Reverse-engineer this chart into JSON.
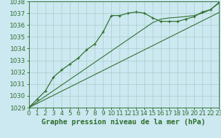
{
  "title": "Graphe pression niveau de la mer (hPa)",
  "background_color": "#cce8f0",
  "grid_color": "#a8ccc8",
  "line_color": "#2d6e2d",
  "x_values": [
    0,
    1,
    2,
    3,
    4,
    5,
    6,
    7,
    8,
    9,
    10,
    11,
    12,
    13,
    14,
    15,
    16,
    17,
    18,
    19,
    20,
    21,
    22,
    23
  ],
  "y_main": [
    1029.0,
    1029.7,
    1030.4,
    1031.6,
    1032.2,
    1032.7,
    1033.2,
    1033.9,
    1034.4,
    1035.4,
    1036.8,
    1036.8,
    1037.0,
    1037.1,
    1037.0,
    1036.6,
    1036.3,
    1036.3,
    1036.3,
    1036.5,
    1036.7,
    1037.1,
    1037.3,
    1037.9
  ],
  "y_trend1": [
    1029.0,
    1029.35,
    1029.7,
    1030.05,
    1030.4,
    1030.75,
    1031.1,
    1031.45,
    1031.8,
    1032.15,
    1032.5,
    1032.85,
    1033.2,
    1033.55,
    1033.9,
    1034.25,
    1034.6,
    1034.95,
    1035.3,
    1035.65,
    1036.0,
    1036.35,
    1036.7,
    1037.05
  ],
  "y_trend2": [
    1029.0,
    1029.48,
    1029.96,
    1030.44,
    1030.92,
    1031.4,
    1031.88,
    1032.36,
    1032.84,
    1033.32,
    1033.8,
    1034.28,
    1034.76,
    1035.24,
    1035.72,
    1036.2,
    1036.5,
    1036.6,
    1036.65,
    1036.72,
    1036.8,
    1037.0,
    1037.3,
    1037.85
  ],
  "ylim": [
    1029,
    1038
  ],
  "yticks": [
    1029,
    1030,
    1031,
    1032,
    1033,
    1034,
    1035,
    1036,
    1037,
    1038
  ],
  "xlim": [
    0,
    23
  ],
  "xticks": [
    0,
    1,
    2,
    3,
    4,
    5,
    6,
    7,
    8,
    9,
    10,
    11,
    12,
    13,
    14,
    15,
    16,
    17,
    18,
    19,
    20,
    21,
    22,
    23
  ],
  "title_fontsize": 7.5,
  "tick_fontsize": 6.5
}
